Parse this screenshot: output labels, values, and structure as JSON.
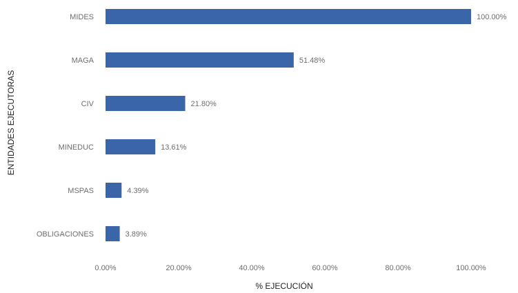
{
  "chart_data": {
    "type": "bar",
    "orientation": "horizontal",
    "categories": [
      "MIDES",
      "MAGA",
      "CIV",
      "MINEDUC",
      "MSPAS",
      "OBLIGACIONES"
    ],
    "values": [
      100.0,
      51.48,
      21.8,
      13.61,
      4.39,
      3.89
    ],
    "value_labels": [
      "100.00%",
      "51.48%",
      "21.80%",
      "13.61%",
      "4.39%",
      "3.89%"
    ],
    "xlabel": "% EJECUCIÓN",
    "ylabel": "ENTIDADES EJECUTORAS",
    "xlim": [
      0,
      100
    ],
    "x_ticks": [
      0,
      20,
      40,
      60,
      80,
      100
    ],
    "x_tick_labels": [
      "0.00%",
      "20.00%",
      "40.00%",
      "60.00%",
      "80.00%",
      "100.00%"
    ],
    "grid": false,
    "bar_color": "#3a65a8"
  }
}
